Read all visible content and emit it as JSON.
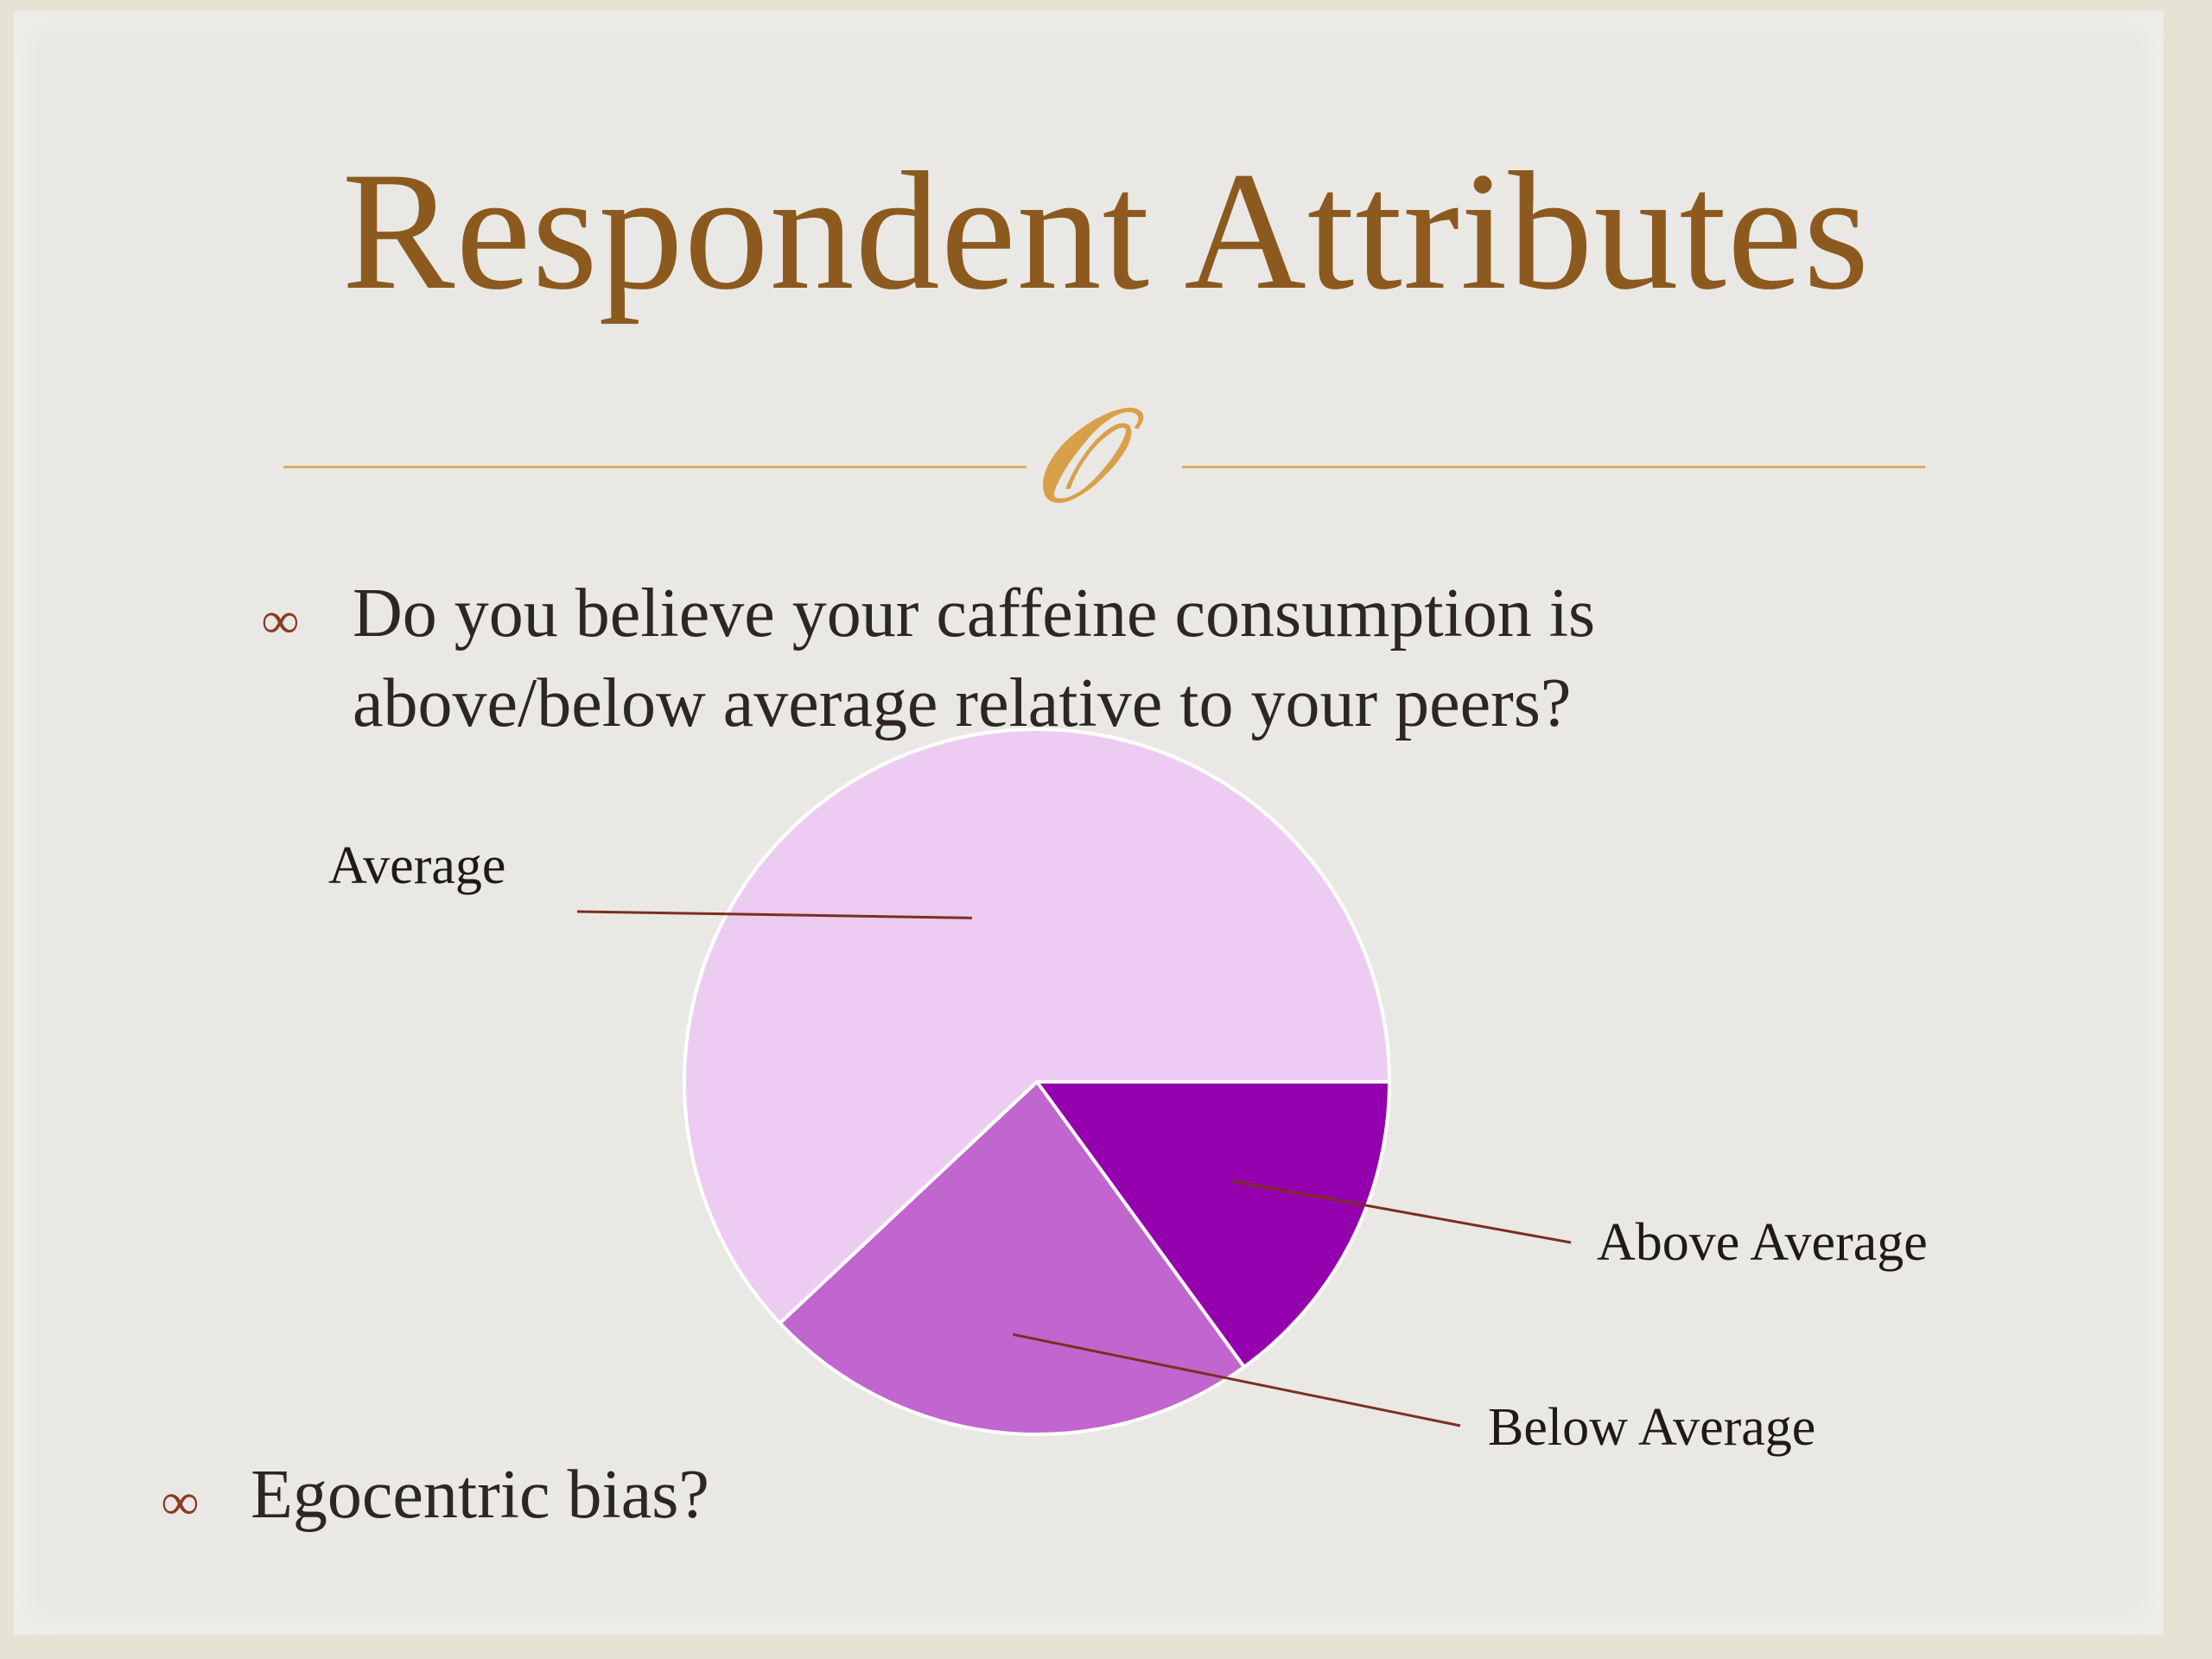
{
  "slide": {
    "title": "Respondent Attributes",
    "bullets": [
      "Do you believe your caffeine consumption is above/below average relative to your peers?",
      "Egocentric bias?"
    ]
  },
  "chart_data": {
    "type": "pie",
    "title": "",
    "slices": [
      {
        "label": "Above Average",
        "value": 15,
        "color": "#9400ad"
      },
      {
        "label": "Below Average",
        "value": 23,
        "color": "#c066ce"
      },
      {
        "label": "Average",
        "value": 62,
        "color": "#ecccf0"
      }
    ],
    "legend": "none",
    "label_placement": "outside with leader lines"
  },
  "colors": {
    "title": "#8c5a1e",
    "divider": "#d9ad62",
    "bullet_mark": "#8a3a22",
    "leader_line": "#7a3020"
  }
}
